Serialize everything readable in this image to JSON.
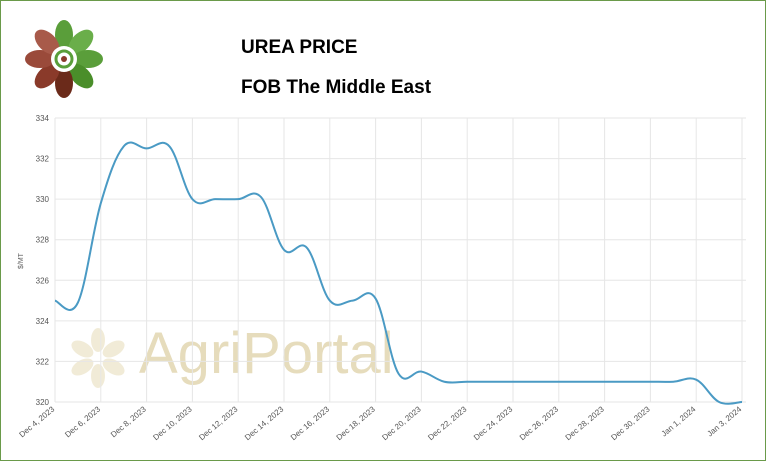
{
  "chart_data": {
    "type": "line",
    "title": "UREA PRICE",
    "subtitle": "FOB The Middle East",
    "y_label": "$/MT",
    "watermark": "AgriPortal",
    "categories": [
      "Dec 4, 2023",
      null,
      "Dec 6, 2023",
      null,
      "Dec 8, 2023",
      null,
      "Dec 10, 2023",
      null,
      "Dec 12, 2023",
      null,
      "Dec 14, 2023",
      null,
      "Dec 16, 2023",
      null,
      "Dec 18, 2023",
      null,
      "Dec 20, 2023",
      null,
      "Dec 22, 2023",
      null,
      "Dec 24, 2023",
      null,
      "Dec 26, 2023",
      null,
      "Dec 28, 2023",
      null,
      "Dec 30, 2023",
      null,
      "Jan 1, 2024",
      null,
      "Jan 3, 2024"
    ],
    "series": [
      {
        "name": "Urea price",
        "color": "#4a9ac4",
        "values": [
          325,
          324.9,
          329.8,
          332.6,
          332.5,
          332.6,
          330,
          330,
          330,
          330.1,
          327.5,
          327.6,
          325,
          325,
          325.1,
          321.4,
          321.5,
          321,
          321,
          321,
          321,
          321,
          321,
          321,
          321,
          321,
          321,
          321,
          321.1,
          320,
          320
        ]
      }
    ],
    "ylim": [
      320,
      334
    ],
    "yticks": [
      320,
      322,
      324,
      326,
      328,
      330,
      332,
      334
    ],
    "grid": true
  }
}
